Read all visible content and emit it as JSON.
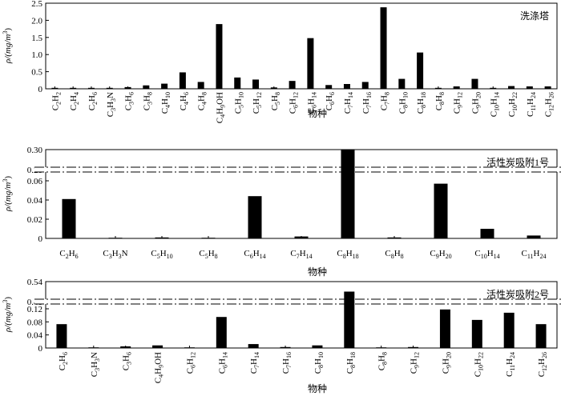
{
  "chart_data": [
    {
      "type": "bar",
      "panel_label": "洗涤塔",
      "xlabel": "物种",
      "ylabel_prefix": "ρ/(mg/m",
      "ylabel_sup": "3",
      "ylabel_suffix": ")",
      "ylim": [
        0,
        2.5
      ],
      "yticks": [
        "0",
        "0.5",
        "1.0",
        "1.5",
        "2.0",
        "2.5"
      ],
      "categories": [
        [
          [
            "C",
            ""
          ],
          [
            "2",
            "s"
          ],
          [
            "H",
            ""
          ],
          [
            "2",
            "s"
          ]
        ],
        [
          [
            "C",
            ""
          ],
          [
            "2",
            "s"
          ],
          [
            "H",
            ""
          ],
          [
            "4",
            "s"
          ]
        ],
        [
          [
            "C",
            ""
          ],
          [
            "2",
            "s"
          ],
          [
            "H",
            ""
          ],
          [
            "6",
            "s"
          ]
        ],
        [
          [
            "C",
            ""
          ],
          [
            "3",
            "s"
          ],
          [
            "H",
            ""
          ],
          [
            "3",
            "s"
          ],
          [
            "N",
            ""
          ]
        ],
        [
          [
            "C",
            ""
          ],
          [
            "3",
            "s"
          ],
          [
            "H",
            ""
          ],
          [
            "6",
            "s"
          ]
        ],
        [
          [
            "C",
            ""
          ],
          [
            "3",
            "s"
          ],
          [
            "H",
            ""
          ],
          [
            "8",
            "s"
          ]
        ],
        [
          [
            "C",
            ""
          ],
          [
            "4",
            "s"
          ],
          [
            "H",
            ""
          ],
          [
            "10",
            "s"
          ]
        ],
        [
          [
            "C",
            ""
          ],
          [
            "4",
            "s"
          ],
          [
            "H",
            ""
          ],
          [
            "6",
            "s"
          ]
        ],
        [
          [
            "C",
            ""
          ],
          [
            "4",
            "s"
          ],
          [
            "H",
            ""
          ],
          [
            "8",
            "s"
          ]
        ],
        [
          [
            "C",
            ""
          ],
          [
            "4",
            "s"
          ],
          [
            "H",
            ""
          ],
          [
            "9",
            "s"
          ],
          [
            "OH",
            ""
          ]
        ],
        [
          [
            "C",
            ""
          ],
          [
            "5",
            "s"
          ],
          [
            "H",
            ""
          ],
          [
            "10",
            "s"
          ]
        ],
        [
          [
            "C",
            ""
          ],
          [
            "5",
            "s"
          ],
          [
            "H",
            ""
          ],
          [
            "12",
            "s"
          ]
        ],
        [
          [
            "C",
            ""
          ],
          [
            "5",
            "s"
          ],
          [
            "H",
            ""
          ],
          [
            "8",
            "s"
          ]
        ],
        [
          [
            "C",
            ""
          ],
          [
            "6",
            "s"
          ],
          [
            "H",
            ""
          ],
          [
            "12",
            "s"
          ]
        ],
        [
          [
            "C",
            ""
          ],
          [
            "6",
            "s"
          ],
          [
            "H",
            ""
          ],
          [
            "14",
            "s"
          ]
        ],
        [
          [
            "C",
            ""
          ],
          [
            "6",
            "s"
          ],
          [
            "H",
            ""
          ],
          [
            "6",
            "s"
          ]
        ],
        [
          [
            "C",
            ""
          ],
          [
            "7",
            "s"
          ],
          [
            "H",
            ""
          ],
          [
            "14",
            "s"
          ]
        ],
        [
          [
            "C",
            ""
          ],
          [
            "7",
            "s"
          ],
          [
            "H",
            ""
          ],
          [
            "16",
            "s"
          ]
        ],
        [
          [
            "C",
            ""
          ],
          [
            "7",
            "s"
          ],
          [
            "H",
            ""
          ],
          [
            "8",
            "s"
          ]
        ],
        [
          [
            "C",
            ""
          ],
          [
            "8",
            "s"
          ],
          [
            "H",
            ""
          ],
          [
            "10",
            "s"
          ]
        ],
        [
          [
            "C",
            ""
          ],
          [
            "8",
            "s"
          ],
          [
            "H",
            ""
          ],
          [
            "18",
            "s"
          ]
        ],
        [
          [
            "C",
            ""
          ],
          [
            "8",
            "s"
          ],
          [
            "H",
            ""
          ],
          [
            "8",
            "s"
          ]
        ],
        [
          [
            "C",
            ""
          ],
          [
            "9",
            "s"
          ],
          [
            "H",
            ""
          ],
          [
            "12",
            "s"
          ]
        ],
        [
          [
            "C",
            ""
          ],
          [
            "9",
            "s"
          ],
          [
            "H",
            ""
          ],
          [
            "20",
            "s"
          ]
        ],
        [
          [
            "C",
            ""
          ],
          [
            "10",
            "s"
          ],
          [
            "H",
            ""
          ],
          [
            "14",
            "s"
          ]
        ],
        [
          [
            "C",
            ""
          ],
          [
            "10",
            "s"
          ],
          [
            "H",
            ""
          ],
          [
            "22",
            "s"
          ]
        ],
        [
          [
            "C",
            ""
          ],
          [
            "11",
            "s"
          ],
          [
            "H",
            ""
          ],
          [
            "24",
            "s"
          ]
        ],
        [
          [
            "C",
            ""
          ],
          [
            "12",
            "s"
          ],
          [
            "H",
            ""
          ],
          [
            "26",
            "s"
          ]
        ]
      ],
      "values": [
        0.01,
        0.02,
        0.01,
        0.01,
        0.05,
        0.1,
        0.15,
        0.48,
        0.2,
        1.89,
        0.33,
        0.27,
        0.04,
        0.23,
        1.48,
        0.11,
        0.14,
        0.2,
        2.38,
        0.29,
        1.06,
        0.01,
        0.07,
        0.29,
        0.02,
        0.08,
        0.07,
        0.07
      ]
    },
    {
      "type": "bar",
      "panel_label": "活性炭吸附1号",
      "xlabel": "物种",
      "ylabel_prefix": "ρ/(mg/m",
      "ylabel_sup": "3",
      "ylabel_suffix": ")",
      "axis_break": true,
      "ylim": [
        0,
        0.3
      ],
      "yticks": [
        "0",
        "0.02",
        "0.04",
        "0.06",
        "0.28",
        "0.30"
      ],
      "categories": [
        [
          [
            "C",
            ""
          ],
          [
            "2",
            "s"
          ],
          [
            "H",
            ""
          ],
          [
            "6",
            "s"
          ]
        ],
        [
          [
            "C",
            ""
          ],
          [
            "3",
            "s"
          ],
          [
            "H",
            ""
          ],
          [
            "3",
            "s"
          ],
          [
            "N",
            ""
          ]
        ],
        [
          [
            "C",
            ""
          ],
          [
            "5",
            "s"
          ],
          [
            "H",
            ""
          ],
          [
            "10",
            "s"
          ]
        ],
        [
          [
            "C",
            ""
          ],
          [
            "5",
            "s"
          ],
          [
            "H",
            ""
          ],
          [
            "8",
            "s"
          ]
        ],
        [
          [
            "C",
            ""
          ],
          [
            "6",
            "s"
          ],
          [
            "H",
            ""
          ],
          [
            "14",
            "s"
          ]
        ],
        [
          [
            "C",
            ""
          ],
          [
            "7",
            "s"
          ],
          [
            "H",
            ""
          ],
          [
            "14",
            "s"
          ]
        ],
        [
          [
            "C",
            ""
          ],
          [
            "8",
            "s"
          ],
          [
            "H",
            ""
          ],
          [
            "18",
            "s"
          ]
        ],
        [
          [
            "C",
            ""
          ],
          [
            "8",
            "s"
          ],
          [
            "H",
            ""
          ],
          [
            "8",
            "s"
          ]
        ],
        [
          [
            "C",
            ""
          ],
          [
            "9",
            "s"
          ],
          [
            "H",
            ""
          ],
          [
            "20",
            "s"
          ]
        ],
        [
          [
            "C",
            ""
          ],
          [
            "10",
            "s"
          ],
          [
            "H",
            ""
          ],
          [
            "14",
            "s"
          ]
        ],
        [
          [
            "C",
            ""
          ],
          [
            "11",
            "s"
          ],
          [
            "H",
            ""
          ],
          [
            "24",
            "s"
          ]
        ]
      ],
      "values": [
        0.041,
        0.0,
        0.001,
        0.0,
        0.044,
        0.002,
        0.3,
        0.001,
        0.057,
        0.01,
        0.003
      ]
    },
    {
      "type": "bar",
      "panel_label": "活性炭吸附2号",
      "xlabel": "物种",
      "ylabel_prefix": "ρ/(mg/m",
      "ylabel_sup": "3",
      "ylabel_suffix": ")",
      "axis_break": true,
      "ylim": [
        0,
        0.54
      ],
      "yticks": [
        "0",
        "0.04",
        "0.08",
        "0.12",
        "0.48",
        "0.54"
      ],
      "categories": [
        [
          [
            "C",
            ""
          ],
          [
            "2",
            "s"
          ],
          [
            "H",
            ""
          ],
          [
            "6",
            "s"
          ]
        ],
        [
          [
            "C",
            ""
          ],
          [
            "3",
            "s"
          ],
          [
            "H",
            ""
          ],
          [
            "3",
            "s"
          ],
          [
            "N",
            ""
          ]
        ],
        [
          [
            "C",
            ""
          ],
          [
            "3",
            "s"
          ],
          [
            "H",
            ""
          ],
          [
            "6",
            "s"
          ]
        ],
        [
          [
            "C",
            ""
          ],
          [
            "4",
            "s"
          ],
          [
            "H",
            ""
          ],
          [
            "9",
            "s"
          ],
          [
            "OH",
            ""
          ]
        ],
        [
          [
            "C",
            ""
          ],
          [
            "6",
            "s"
          ],
          [
            "H",
            ""
          ],
          [
            "12",
            "s"
          ]
        ],
        [
          [
            "C",
            ""
          ],
          [
            "6",
            "s"
          ],
          [
            "H",
            ""
          ],
          [
            "14",
            "s"
          ]
        ],
        [
          [
            "C",
            ""
          ],
          [
            "7",
            "s"
          ],
          [
            "H",
            ""
          ],
          [
            "14",
            "s"
          ]
        ],
        [
          [
            "C",
            ""
          ],
          [
            "7",
            "s"
          ],
          [
            "H",
            ""
          ],
          [
            "16",
            "s"
          ]
        ],
        [
          [
            "C",
            ""
          ],
          [
            "8",
            "s"
          ],
          [
            "H",
            ""
          ],
          [
            "10",
            "s"
          ]
        ],
        [
          [
            "C",
            ""
          ],
          [
            "8",
            "s"
          ],
          [
            "H",
            ""
          ],
          [
            "18",
            "s"
          ]
        ],
        [
          [
            "C",
            ""
          ],
          [
            "8",
            "s"
          ],
          [
            "H",
            ""
          ],
          [
            "8",
            "s"
          ]
        ],
        [
          [
            "C",
            ""
          ],
          [
            "9",
            "s"
          ],
          [
            "H",
            ""
          ],
          [
            "12",
            "s"
          ]
        ],
        [
          [
            "C",
            ""
          ],
          [
            "9",
            "s"
          ],
          [
            "H",
            ""
          ],
          [
            "20",
            "s"
          ]
        ],
        [
          [
            "C",
            ""
          ],
          [
            "10",
            "s"
          ],
          [
            "H",
            ""
          ],
          [
            "22",
            "s"
          ]
        ],
        [
          [
            "C",
            ""
          ],
          [
            "11",
            "s"
          ],
          [
            "H",
            ""
          ],
          [
            "24",
            "s"
          ]
        ],
        [
          [
            "C",
            ""
          ],
          [
            "12",
            "s"
          ],
          [
            "H",
            ""
          ],
          [
            "26",
            "s"
          ]
        ]
      ],
      "values": [
        0.073,
        0.0,
        0.005,
        0.008,
        0.0,
        0.095,
        0.012,
        0.003,
        0.008,
        0.51,
        0.0,
        0.003,
        0.118,
        0.086,
        0.108,
        0.073
      ]
    }
  ]
}
